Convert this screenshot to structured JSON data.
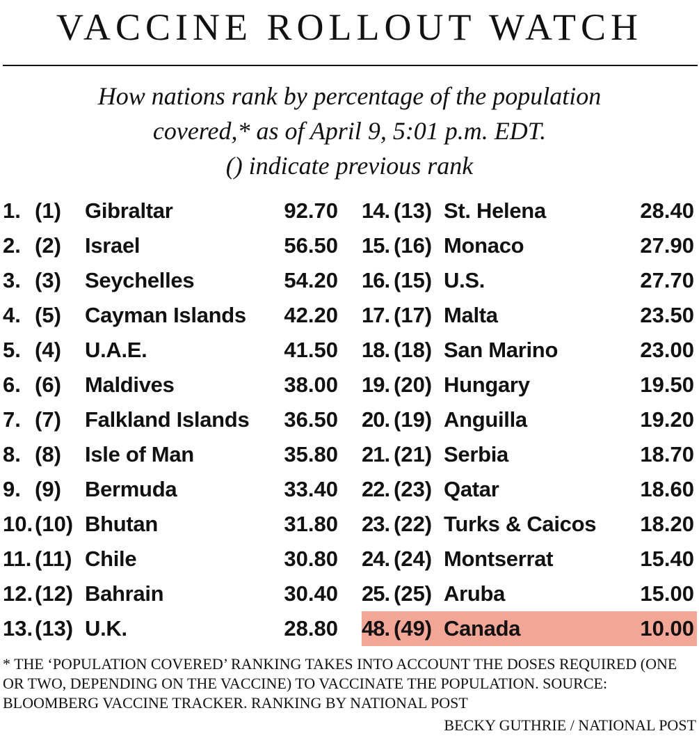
{
  "title": "VACCINE ROLLOUT WATCH",
  "subtitle": [
    "How nations rank by percentage of the population",
    "covered,* as of April 9, 5:01 p.m. EDT.",
    "() indicate previous rank"
  ],
  "rankings": [
    {
      "rank": "1.",
      "prev": "(1)",
      "country": "Gibraltar",
      "value": "92.70"
    },
    {
      "rank": "2.",
      "prev": "(2)",
      "country": "Israel",
      "value": "56.50"
    },
    {
      "rank": "3.",
      "prev": "(3)",
      "country": "Seychelles",
      "value": "54.20"
    },
    {
      "rank": "4.",
      "prev": "(5)",
      "country": "Cayman Islands",
      "value": "42.20"
    },
    {
      "rank": "5.",
      "prev": "(4)",
      "country": "U.A.E.",
      "value": "41.50"
    },
    {
      "rank": "6.",
      "prev": "(6)",
      "country": "Maldives",
      "value": "38.00"
    },
    {
      "rank": "7.",
      "prev": "(7)",
      "country": "Falkland Islands",
      "value": "36.50"
    },
    {
      "rank": "8.",
      "prev": "(8)",
      "country": "Isle of Man",
      "value": "35.80"
    },
    {
      "rank": "9.",
      "prev": "(9)",
      "country": "Bermuda",
      "value": "33.40"
    },
    {
      "rank": "10.",
      "prev": "(10)",
      "country": "Bhutan",
      "value": "31.80"
    },
    {
      "rank": "11.",
      "prev": "(11)",
      "country": "Chile",
      "value": "30.80"
    },
    {
      "rank": "12.",
      "prev": "(12)",
      "country": "Bahrain",
      "value": "30.40"
    },
    {
      "rank": "13.",
      "prev": "(13)",
      "country": "U.K.",
      "value": "28.80"
    },
    {
      "rank": "14.",
      "prev": "(13)",
      "country": "St. Helena",
      "value": "28.40"
    },
    {
      "rank": "15.",
      "prev": "(16)",
      "country": "Monaco",
      "value": "27.90"
    },
    {
      "rank": "16.",
      "prev": "(15)",
      "country": "U.S.",
      "value": "27.70"
    },
    {
      "rank": "17.",
      "prev": "(17)",
      "country": "Malta",
      "value": "23.50"
    },
    {
      "rank": "18.",
      "prev": "(18)",
      "country": "San Marino",
      "value": "23.00"
    },
    {
      "rank": "19.",
      "prev": "(20)",
      "country": "Hungary",
      "value": "19.50"
    },
    {
      "rank": "20.",
      "prev": "(19)",
      "country": "Anguilla",
      "value": "19.20"
    },
    {
      "rank": "21.",
      "prev": "(21)",
      "country": "Serbia",
      "value": "18.70"
    },
    {
      "rank": "22.",
      "prev": "(23)",
      "country": "Qatar",
      "value": "18.60"
    },
    {
      "rank": "23.",
      "prev": "(22)",
      "country": "Turks & Caicos",
      "value": "18.20"
    },
    {
      "rank": "24.",
      "prev": "(24)",
      "country": "Montserrat",
      "value": "15.40"
    },
    {
      "rank": "25.",
      "prev": "(25)",
      "country": "Aruba",
      "value": "15.00"
    },
    {
      "rank": "48.",
      "prev": "(49)",
      "country": "Canada",
      "value": "10.00"
    }
  ],
  "highlight_color": "#f3a696",
  "footnote": "* The ‘population covered’ ranking takes into account the doses required (one or two, depending on the vaccine) to vaccinate the population. Source: Bloomberg Vaccine Tracker. Ranking by National Post",
  "credit": "BECKY GUTHRIE / NATIONAL POST"
}
